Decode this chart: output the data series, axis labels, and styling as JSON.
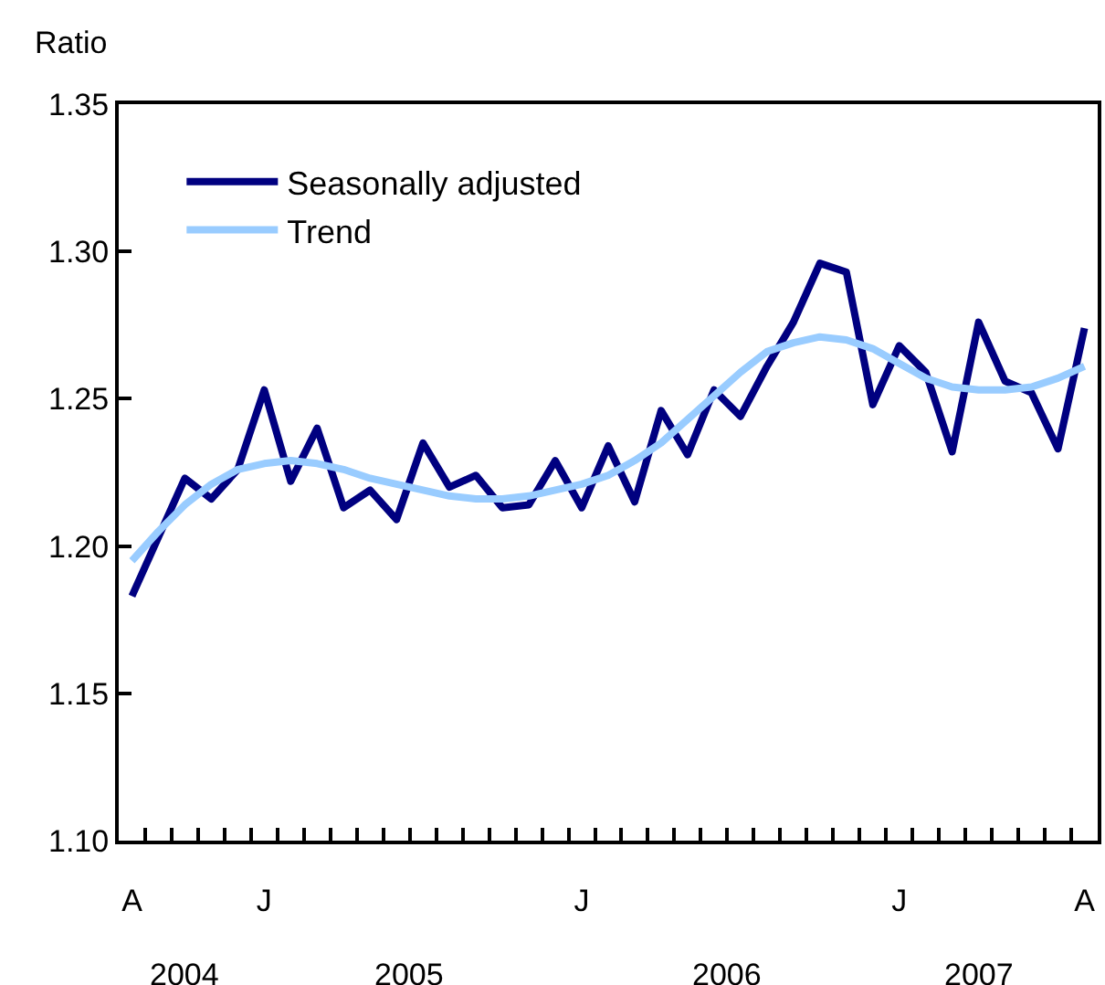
{
  "chart_data": {
    "type": "line",
    "ylabel": "Ratio",
    "categories": [
      "A",
      null,
      null,
      null,
      null,
      "J",
      null,
      null,
      null,
      null,
      null,
      null,
      null,
      null,
      null,
      null,
      null,
      "J",
      null,
      null,
      null,
      null,
      null,
      null,
      null,
      null,
      null,
      null,
      null,
      "J",
      null,
      null,
      null,
      null,
      null,
      null,
      "A"
    ],
    "series": [
      {
        "name": "Seasonally adjusted",
        "color": "#000080",
        "values": [
          1.183,
          1.203,
          1.223,
          1.216,
          1.226,
          1.253,
          1.222,
          1.24,
          1.213,
          1.219,
          1.209,
          1.235,
          1.22,
          1.224,
          1.213,
          1.214,
          1.229,
          1.213,
          1.234,
          1.215,
          1.246,
          1.231,
          1.253,
          1.244,
          1.261,
          1.276,
          1.296,
          1.293,
          1.248,
          1.268,
          1.259,
          1.232,
          1.276,
          1.256,
          1.252,
          1.233,
          1.274
        ]
      },
      {
        "name": "Trend",
        "color": "#99ccff",
        "values": [
          1.195,
          1.205,
          1.214,
          1.221,
          1.226,
          1.228,
          1.229,
          1.228,
          1.226,
          1.223,
          1.221,
          1.219,
          1.217,
          1.216,
          1.216,
          1.217,
          1.219,
          1.221,
          1.224,
          1.229,
          1.235,
          1.243,
          1.251,
          1.259,
          1.266,
          1.269,
          1.271,
          1.27,
          1.267,
          1.262,
          1.257,
          1.254,
          1.253,
          1.253,
          1.254,
          1.257,
          1.261
        ]
      }
    ],
    "ylim": [
      1.1,
      1.35
    ],
    "yticks": [
      {
        "value": 1.1,
        "label": "1.10"
      },
      {
        "value": 1.15,
        "label": "1.15"
      },
      {
        "value": 1.2,
        "label": "1.20"
      },
      {
        "value": 1.25,
        "label": "1.25"
      },
      {
        "value": 1.3,
        "label": "1.30"
      },
      {
        "value": 1.35,
        "label": "1.35"
      }
    ],
    "legend": "top left",
    "annotations": [
      "2004",
      "2005",
      "2006",
      "2007"
    ]
  }
}
